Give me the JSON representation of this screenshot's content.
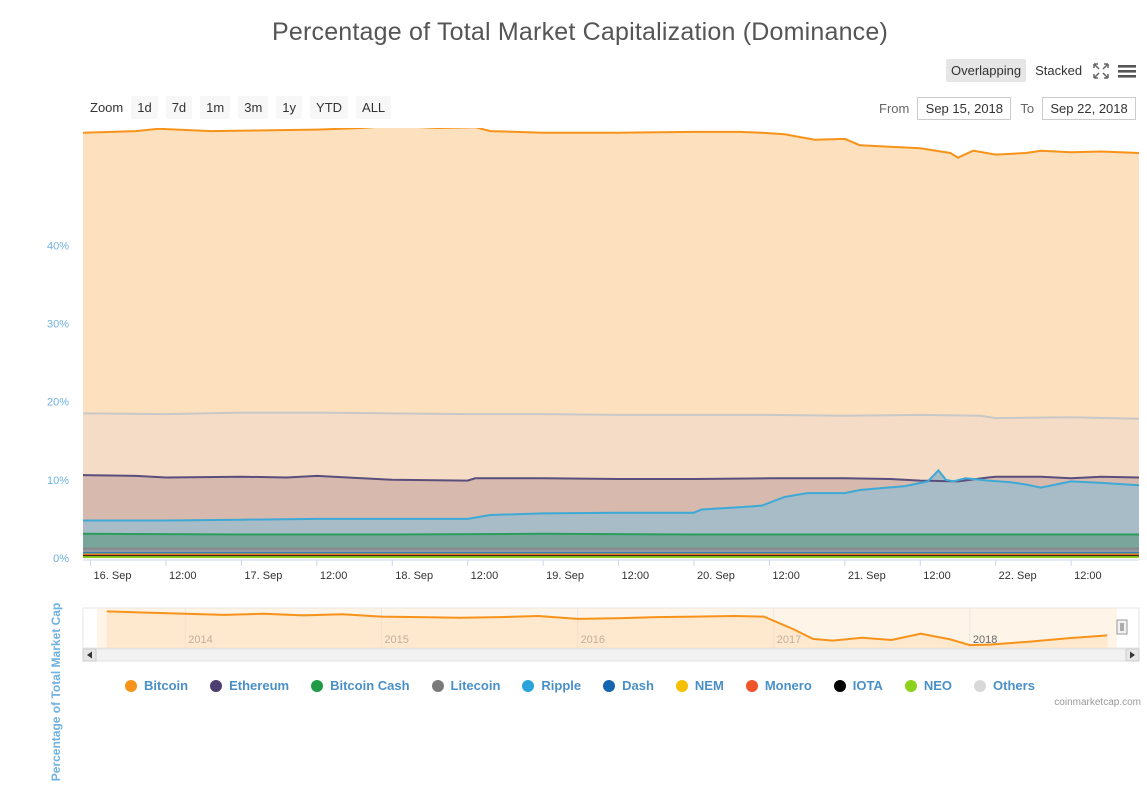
{
  "title": "Percentage of Total Market Capitalization (Dominance)",
  "toolbar": {
    "modes": [
      "Overlapping",
      "Stacked"
    ],
    "active_mode": "Overlapping",
    "fullscreen_icon": "fullscreen-icon",
    "menu_icon": "hamburger-menu-icon"
  },
  "zoom": {
    "label": "Zoom",
    "buttons": [
      "1d",
      "7d",
      "1m",
      "3m",
      "1y",
      "YTD",
      "ALL"
    ]
  },
  "range": {
    "from_label": "From",
    "from_value": "Sep 15, 2018",
    "to_label": "To",
    "to_value": "Sep 22, 2018"
  },
  "credit": "coinmarketcap.com",
  "chart_data": {
    "type": "area",
    "title": "Percentage of Total Market Capitalization (Dominance)",
    "ylabel": "Percentage of Total Market Cap",
    "ylim": [
      0,
      55
    ],
    "yticks": [
      0,
      10,
      20,
      30,
      40
    ],
    "ytick_labels": [
      "0%",
      "10%",
      "20%",
      "30%",
      "40%"
    ],
    "xlim": [
      15.95,
      22.95
    ],
    "xtick_values": [
      16,
      16.5,
      17,
      17.5,
      18,
      18.5,
      19,
      19.5,
      20,
      20.5,
      21,
      21.5,
      22,
      22.5
    ],
    "xtick_labels": [
      "16. Sep",
      "12:00",
      "17. Sep",
      "12:00",
      "18. Sep",
      "12:00",
      "19. Sep",
      "12:00",
      "20. Sep",
      "12:00",
      "21. Sep",
      "12:00",
      "22. Sep",
      "12:00"
    ],
    "grid": true,
    "legend_position": "bottom",
    "series": [
      {
        "name": "Bitcoin",
        "color": "#f7931a",
        "fill": "#fde0bd",
        "x": [
          15.95,
          16.3,
          16.45,
          16.8,
          17.2,
          17.5,
          17.8,
          18.0,
          18.3,
          18.55,
          18.65,
          19.0,
          19.5,
          20.0,
          20.3,
          20.45,
          20.6,
          20.8,
          21.0,
          21.1,
          21.3,
          21.5,
          21.7,
          21.75,
          21.85,
          22.0,
          22.2,
          22.3,
          22.5,
          22.7,
          22.95
        ],
        "y": [
          54.4,
          54.6,
          54.9,
          54.6,
          54.7,
          54.8,
          55.0,
          55.3,
          55.0,
          55.1,
          54.6,
          54.4,
          54.4,
          54.5,
          54.5,
          54.4,
          54.2,
          53.5,
          53.6,
          52.8,
          52.6,
          52.4,
          51.8,
          51.2,
          52.1,
          51.6,
          51.8,
          52.1,
          51.9,
          52.0,
          51.8
        ]
      },
      {
        "name": "Others",
        "color": "#c8c8c8",
        "fill": "#f5dcc6",
        "x": [
          15.95,
          16.5,
          17.0,
          17.5,
          18.0,
          18.5,
          19.0,
          19.5,
          20.0,
          20.5,
          21.0,
          21.5,
          21.9,
          22.0,
          22.5,
          22.95
        ],
        "y": [
          18.5,
          18.4,
          18.6,
          18.6,
          18.5,
          18.4,
          18.4,
          18.3,
          18.3,
          18.3,
          18.2,
          18.3,
          18.2,
          17.9,
          18.0,
          17.8
        ]
      },
      {
        "name": "Ethereum",
        "color": "#5a4e7c",
        "fill": "#d8b9ad",
        "x": [
          15.95,
          16.3,
          16.5,
          17.0,
          17.3,
          17.5,
          17.8,
          18.0,
          18.5,
          18.55,
          19.0,
          19.5,
          20.0,
          20.5,
          21.0,
          21.3,
          21.5,
          21.75,
          21.95,
          22.0,
          22.3,
          22.5,
          22.7,
          22.95
        ],
        "y": [
          10.6,
          10.5,
          10.3,
          10.4,
          10.3,
          10.5,
          10.2,
          10.0,
          9.9,
          10.2,
          10.2,
          10.1,
          10.1,
          10.2,
          10.2,
          10.1,
          9.9,
          9.8,
          10.3,
          10.4,
          10.4,
          10.2,
          10.4,
          10.3
        ]
      },
      {
        "name": "Ripple",
        "color": "#3fa9d6",
        "fill": "#a7bcc6",
        "x": [
          15.95,
          16.5,
          17.0,
          17.5,
          18.0,
          18.5,
          18.65,
          19.0,
          19.5,
          20.0,
          20.05,
          20.3,
          20.45,
          20.6,
          20.75,
          21.0,
          21.1,
          21.4,
          21.55,
          21.62,
          21.67,
          21.72,
          21.8,
          21.95,
          22.1,
          22.2,
          22.3,
          22.5,
          22.7,
          22.95
        ],
        "y": [
          4.8,
          4.8,
          4.9,
          5.0,
          5.0,
          5.0,
          5.5,
          5.7,
          5.8,
          5.8,
          6.2,
          6.5,
          6.7,
          7.8,
          8.3,
          8.3,
          8.7,
          9.2,
          9.8,
          11.2,
          10.0,
          9.8,
          10.2,
          9.9,
          9.7,
          9.4,
          9.0,
          9.8,
          9.6,
          9.3
        ]
      },
      {
        "name": "Bitcoin Cash",
        "color": "#2a9d5c",
        "fill": "#7aa59a",
        "x": [
          15.95,
          17.0,
          18.0,
          19.0,
          20.0,
          21.0,
          22.0,
          22.95
        ],
        "y": [
          3.1,
          3.0,
          3.0,
          3.1,
          3.0,
          3.0,
          3.0,
          3.0
        ]
      },
      {
        "name": "Litecoin",
        "color": "#888888",
        "fill": "#8f9aa2",
        "x": [
          15.95,
          22.95
        ],
        "y": [
          1.2,
          1.2
        ]
      },
      {
        "name": "Dash",
        "color": "#1c75bc",
        "fill": "#8a9aa6",
        "x": [
          15.95,
          22.95
        ],
        "y": [
          0.6,
          0.6
        ]
      },
      {
        "name": "NEM",
        "color": "#f5c000",
        "fill": "#d9c98a",
        "x": [
          15.95,
          22.95
        ],
        "y": [
          0.45,
          0.45
        ]
      },
      {
        "name": "Monero",
        "color": "#f0542a",
        "fill": "#b39b7e",
        "x": [
          15.95,
          22.95
        ],
        "y": [
          0.35,
          0.35
        ]
      },
      {
        "name": "IOTA",
        "color": "#111111",
        "fill": "#555555",
        "x": [
          15.95,
          22.95
        ],
        "y": [
          0.22,
          0.22
        ]
      },
      {
        "name": "NEO",
        "color": "#8cd21a",
        "fill": "#9dbb6a",
        "x": [
          15.95,
          22.95
        ],
        "y": [
          0.12,
          0.12
        ]
      }
    ],
    "navigator": {
      "xlim": [
        2013.55,
        2018.75
      ],
      "tick_labels": [
        "2014",
        "2015",
        "2016",
        "2017",
        "2018"
      ],
      "tick_values": [
        2014.0,
        2015.0,
        2016.0,
        2017.0,
        2018.0
      ],
      "ylim": [
        30,
        100
      ],
      "series": {
        "name": "Bitcoin",
        "x": [
          2013.6,
          2013.8,
          2014.0,
          2014.2,
          2014.4,
          2014.6,
          2014.8,
          2015.0,
          2015.2,
          2015.4,
          2015.6,
          2015.8,
          2016.0,
          2016.2,
          2016.4,
          2016.6,
          2016.8,
          2016.95,
          2017.1,
          2017.2,
          2017.3,
          2017.45,
          2017.6,
          2017.75,
          2017.9,
          2018.0,
          2018.1,
          2018.3,
          2018.5,
          2018.7
        ],
        "y": [
          94,
          92,
          90,
          88,
          90,
          87,
          89,
          85,
          84,
          83,
          84,
          86,
          81,
          82,
          84,
          85,
          86,
          85,
          63,
          46,
          43,
          48,
          44,
          55,
          45,
          35,
          36,
          41,
          47,
          52
        ]
      }
    },
    "legend": [
      "Bitcoin",
      "Ethereum",
      "Bitcoin Cash",
      "Litecoin",
      "Ripple",
      "Dash",
      "NEM",
      "Monero",
      "IOTA",
      "NEO",
      "Others"
    ],
    "legend_colors": [
      "#f7931a",
      "#4b3f72",
      "#1f9a45",
      "#7a7a7a",
      "#2aa3db",
      "#1565b0",
      "#f5c000",
      "#f0542a",
      "#000000",
      "#8cd21a",
      "#d8d8d8"
    ]
  }
}
